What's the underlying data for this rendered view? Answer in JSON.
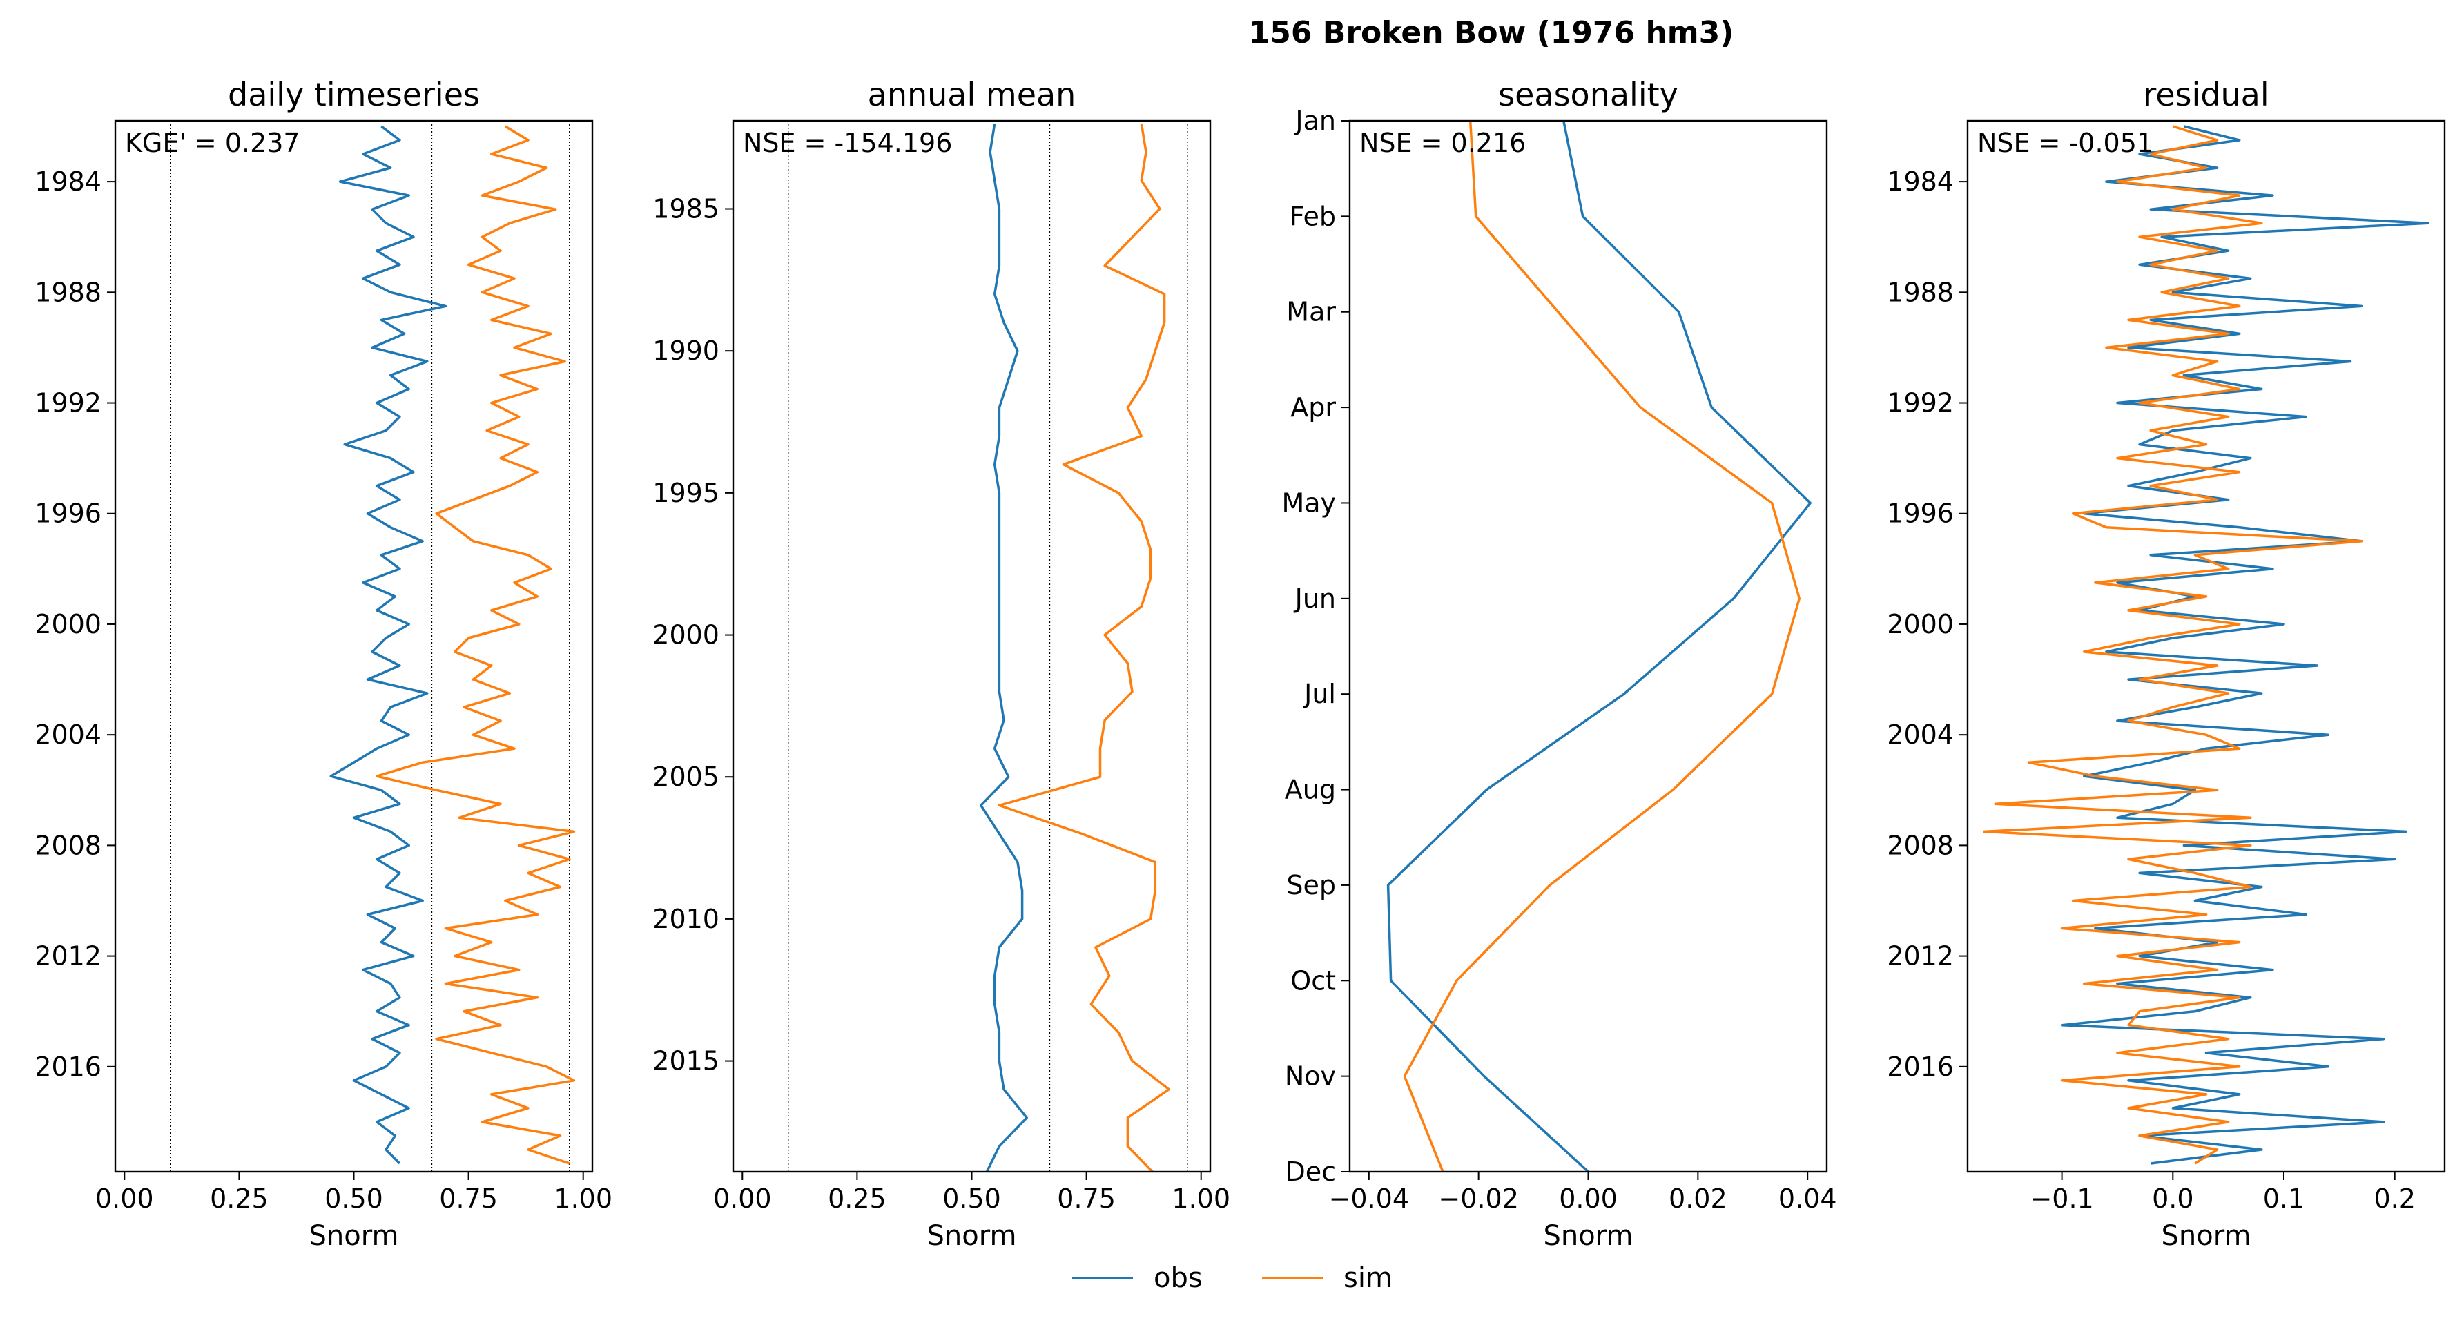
{
  "figure": {
    "suptitle": "156  Broken Bow (1976 hm3)",
    "colors": {
      "obs": "#1f77b4",
      "sim": "#ff7f0e"
    },
    "legend": {
      "position": "bottom-center",
      "entries": [
        "obs",
        "sim"
      ]
    }
  },
  "chart_data": [
    {
      "type": "line",
      "title": "daily timeseries",
      "xlabel": "Snorm",
      "ylabel": "",
      "metric": "KGE' = 0.237",
      "xlim": [
        -0.02,
        1.02
      ],
      "xticks": [
        0.0,
        0.25,
        0.5,
        0.75,
        1.0
      ],
      "xtick_labels": [
        "0.00",
        "0.25",
        "0.50",
        "0.75",
        "1.00"
      ],
      "ylim": [
        1981.8,
        2019.8
      ],
      "y_inverted": true,
      "yticks": [
        1984,
        1988,
        1992,
        1996,
        2000,
        2004,
        2008,
        2012,
        2016
      ],
      "ytick_labels": [
        "1984",
        "1988",
        "1992",
        "1996",
        "2000",
        "2004",
        "2008",
        "2012",
        "2016"
      ],
      "reference_lines_x": [
        0.1,
        0.67,
        0.97
      ],
      "series": [
        {
          "name": "obs",
          "y": [
            1982.0,
            1982.5,
            1983.0,
            1983.5,
            1984.0,
            1984.5,
            1985.0,
            1985.5,
            1986.0,
            1986.5,
            1987.0,
            1987.5,
            1988.0,
            1988.5,
            1989.0,
            1989.5,
            1990.0,
            1990.5,
            1991.0,
            1991.5,
            1992.0,
            1992.5,
            1993.0,
            1993.5,
            1994.0,
            1994.5,
            1995.0,
            1995.5,
            1996.0,
            1996.5,
            1997.0,
            1997.5,
            1998.0,
            1998.5,
            1999.0,
            1999.5,
            2000.0,
            2000.5,
            2001.0,
            2001.5,
            2002.0,
            2002.5,
            2003.0,
            2003.5,
            2004.0,
            2004.5,
            2005.0,
            2005.5,
            2006.0,
            2006.5,
            2007.0,
            2007.5,
            2008.0,
            2008.5,
            2009.0,
            2009.5,
            2010.0,
            2010.5,
            2011.0,
            2011.5,
            2012.0,
            2012.5,
            2013.0,
            2013.5,
            2014.0,
            2014.5,
            2015.0,
            2015.5,
            2016.0,
            2016.5,
            2017.0,
            2017.5,
            2018.0,
            2018.5,
            2019.0,
            2019.5
          ],
          "x": [
            0.56,
            0.6,
            0.52,
            0.58,
            0.47,
            0.62,
            0.54,
            0.57,
            0.63,
            0.55,
            0.6,
            0.52,
            0.58,
            0.7,
            0.56,
            0.61,
            0.54,
            0.66,
            0.58,
            0.62,
            0.55,
            0.6,
            0.57,
            0.48,
            0.58,
            0.63,
            0.55,
            0.6,
            0.53,
            0.58,
            0.65,
            0.56,
            0.6,
            0.52,
            0.59,
            0.55,
            0.62,
            0.57,
            0.54,
            0.6,
            0.53,
            0.66,
            0.58,
            0.56,
            0.62,
            0.55,
            0.5,
            0.45,
            0.56,
            0.6,
            0.5,
            0.58,
            0.62,
            0.55,
            0.6,
            0.57,
            0.65,
            0.53,
            0.59,
            0.56,
            0.63,
            0.52,
            0.58,
            0.6,
            0.55,
            0.62,
            0.54,
            0.6,
            0.57,
            0.5,
            0.56,
            0.62,
            0.55,
            0.59,
            0.57,
            0.6
          ]
        },
        {
          "name": "sim",
          "y": [
            1982.0,
            1982.5,
            1983.0,
            1983.5,
            1984.0,
            1984.5,
            1985.0,
            1985.5,
            1986.0,
            1986.5,
            1987.0,
            1987.5,
            1988.0,
            1988.5,
            1989.0,
            1989.5,
            1990.0,
            1990.5,
            1991.0,
            1991.5,
            1992.0,
            1992.5,
            1993.0,
            1993.5,
            1994.0,
            1994.5,
            1995.0,
            1995.5,
            1996.0,
            1996.5,
            1997.0,
            1997.5,
            1998.0,
            1998.5,
            1999.0,
            1999.5,
            2000.0,
            2000.5,
            2001.0,
            2001.5,
            2002.0,
            2002.5,
            2003.0,
            2003.5,
            2004.0,
            2004.5,
            2005.0,
            2005.5,
            2006.0,
            2006.5,
            2007.0,
            2007.5,
            2008.0,
            2008.5,
            2009.0,
            2009.5,
            2010.0,
            2010.5,
            2011.0,
            2011.5,
            2012.0,
            2012.5,
            2013.0,
            2013.5,
            2014.0,
            2014.5,
            2015.0,
            2015.5,
            2016.0,
            2016.5,
            2017.0,
            2017.5,
            2018.0,
            2018.5,
            2019.0,
            2019.5
          ],
          "x": [
            0.83,
            0.88,
            0.8,
            0.92,
            0.86,
            0.78,
            0.94,
            0.84,
            0.78,
            0.82,
            0.75,
            0.85,
            0.78,
            0.88,
            0.8,
            0.93,
            0.85,
            0.96,
            0.82,
            0.9,
            0.8,
            0.86,
            0.79,
            0.88,
            0.82,
            0.9,
            0.84,
            0.76,
            0.68,
            0.72,
            0.76,
            0.88,
            0.93,
            0.85,
            0.9,
            0.8,
            0.86,
            0.75,
            0.72,
            0.8,
            0.76,
            0.84,
            0.74,
            0.82,
            0.76,
            0.85,
            0.65,
            0.55,
            0.68,
            0.82,
            0.73,
            0.98,
            0.86,
            0.97,
            0.88,
            0.95,
            0.83,
            0.9,
            0.7,
            0.8,
            0.72,
            0.86,
            0.7,
            0.9,
            0.74,
            0.82,
            0.68,
            0.8,
            0.92,
            0.98,
            0.8,
            0.88,
            0.78,
            0.95,
            0.88,
            0.97
          ]
        }
      ]
    },
    {
      "type": "line",
      "title": "annual mean",
      "xlabel": "Snorm",
      "ylabel": "",
      "metric": "NSE = -154.196",
      "xlim": [
        -0.02,
        1.02
      ],
      "xticks": [
        0.0,
        0.25,
        0.5,
        0.75,
        1.0
      ],
      "xtick_labels": [
        "0.00",
        "0.25",
        "0.50",
        "0.75",
        "1.00"
      ],
      "ylim": [
        1981.9,
        2018.9
      ],
      "y_inverted": true,
      "yticks": [
        1985,
        1990,
        1995,
        2000,
        2005,
        2010,
        2015
      ],
      "ytick_labels": [
        "1985",
        "1990",
        "1995",
        "2000",
        "2005",
        "2010",
        "2015"
      ],
      "reference_lines_x": [
        0.1,
        0.67,
        0.97
      ],
      "series": [
        {
          "name": "obs",
          "y": [
            1982,
            1983,
            1984,
            1985,
            1986,
            1987,
            1988,
            1989,
            1990,
            1991,
            1992,
            1993,
            1994,
            1995,
            1996,
            1997,
            1998,
            1999,
            2000,
            2001,
            2002,
            2003,
            2004,
            2005,
            2006,
            2007,
            2008,
            2009,
            2010,
            2011,
            2012,
            2013,
            2014,
            2015,
            2016,
            2017,
            2018,
            2019
          ],
          "x": [
            0.55,
            0.54,
            0.55,
            0.56,
            0.56,
            0.56,
            0.55,
            0.57,
            0.6,
            0.58,
            0.56,
            0.56,
            0.55,
            0.56,
            0.56,
            0.56,
            0.56,
            0.56,
            0.56,
            0.56,
            0.56,
            0.57,
            0.55,
            0.58,
            0.52,
            0.56,
            0.6,
            0.61,
            0.61,
            0.56,
            0.55,
            0.55,
            0.56,
            0.56,
            0.57,
            0.62,
            0.56,
            0.53
          ]
        },
        {
          "name": "sim",
          "y": [
            1982,
            1983,
            1984,
            1985,
            1986,
            1987,
            1988,
            1989,
            1990,
            1991,
            1992,
            1993,
            1994,
            1995,
            1996,
            1997,
            1998,
            1999,
            2000,
            2001,
            2002,
            2003,
            2004,
            2005,
            2006,
            2007,
            2008,
            2009,
            2010,
            2011,
            2012,
            2013,
            2014,
            2015,
            2016,
            2017,
            2018,
            2019
          ],
          "x": [
            0.87,
            0.88,
            0.87,
            0.91,
            0.85,
            0.79,
            0.92,
            0.92,
            0.9,
            0.88,
            0.84,
            0.87,
            0.7,
            0.82,
            0.87,
            0.89,
            0.89,
            0.87,
            0.79,
            0.84,
            0.85,
            0.79,
            0.78,
            0.78,
            0.56,
            0.74,
            0.9,
            0.9,
            0.89,
            0.77,
            0.8,
            0.76,
            0.82,
            0.85,
            0.93,
            0.84,
            0.84,
            0.9
          ]
        }
      ]
    },
    {
      "type": "line",
      "title": "seasonality",
      "xlabel": "Snorm",
      "ylabel": "",
      "metric": "NSE = 0.216",
      "xlim": [
        -0.0435,
        0.0435
      ],
      "xticks": [
        -0.04,
        -0.02,
        0.0,
        0.02,
        0.04
      ],
      "xtick_labels": [
        "−0.04",
        "−0.02",
        "0.00",
        "0.02",
        "0.04"
      ],
      "ylim": [
        0,
        11
      ],
      "y_inverted": true,
      "yticks": [
        0,
        1,
        2,
        3,
        4,
        5,
        6,
        7,
        8,
        9,
        10,
        11
      ],
      "ytick_labels": [
        "Jan",
        "Feb",
        "Mar",
        "Apr",
        "May",
        "Jun",
        "Jul",
        "Aug",
        "Sep",
        "Oct",
        "Nov",
        "Dec"
      ],
      "reference_lines_x": [],
      "series": [
        {
          "name": "obs",
          "y": [
            0,
            1,
            2,
            3,
            4,
            5,
            6,
            7,
            8,
            9,
            10,
            11
          ],
          "x": [
            -0.0045,
            -0.001,
            0.0165,
            0.0225,
            0.0405,
            0.0265,
            0.0065,
            -0.0185,
            -0.0365,
            -0.036,
            -0.019,
            0.0
          ]
        },
        {
          "name": "sim",
          "y": [
            0,
            1,
            2,
            3,
            4,
            5,
            6,
            7,
            8,
            9,
            10,
            11
          ],
          "x": [
            -0.0215,
            -0.0205,
            -0.0055,
            0.0095,
            0.0335,
            0.0385,
            0.0335,
            0.0155,
            -0.007,
            -0.024,
            -0.0335,
            -0.0265
          ]
        }
      ]
    },
    {
      "type": "line",
      "title": "residual",
      "xlabel": "Snorm",
      "ylabel": "",
      "metric": "NSE = -0.051",
      "xlim": [
        -0.185,
        0.245
      ],
      "xticks": [
        -0.1,
        0.0,
        0.1,
        0.2
      ],
      "xtick_labels": [
        "−0.1",
        "0.0",
        "0.1",
        "0.2"
      ],
      "ylim": [
        1981.8,
        2019.8
      ],
      "y_inverted": true,
      "yticks": [
        1984,
        1988,
        1992,
        1996,
        2000,
        2004,
        2008,
        2012,
        2016
      ],
      "ytick_labels": [
        "1984",
        "1988",
        "1992",
        "1996",
        "2000",
        "2004",
        "2008",
        "2012",
        "2016"
      ],
      "reference_lines_x": [],
      "series": [
        {
          "name": "obs",
          "y": [
            1982.0,
            1982.5,
            1983.0,
            1983.5,
            1984.0,
            1984.5,
            1985.0,
            1985.5,
            1986.0,
            1986.5,
            1987.0,
            1987.5,
            1988.0,
            1988.5,
            1989.0,
            1989.5,
            1990.0,
            1990.5,
            1991.0,
            1991.5,
            1992.0,
            1992.5,
            1993.0,
            1993.5,
            1994.0,
            1994.5,
            1995.0,
            1995.5,
            1996.0,
            1996.5,
            1997.0,
            1997.5,
            1998.0,
            1998.5,
            1999.0,
            1999.5,
            2000.0,
            2000.5,
            2001.0,
            2001.5,
            2002.0,
            2002.5,
            2003.0,
            2003.5,
            2004.0,
            2004.5,
            2005.0,
            2005.5,
            2006.0,
            2006.5,
            2007.0,
            2007.5,
            2008.0,
            2008.5,
            2009.0,
            2009.5,
            2010.0,
            2010.5,
            2011.0,
            2011.5,
            2012.0,
            2012.5,
            2013.0,
            2013.5,
            2014.0,
            2014.5,
            2015.0,
            2015.5,
            2016.0,
            2016.5,
            2017.0,
            2017.5,
            2018.0,
            2018.5,
            2019.0,
            2019.5
          ],
          "x": [
            0.01,
            0.06,
            -0.03,
            0.04,
            -0.06,
            0.09,
            -0.02,
            0.23,
            -0.01,
            0.05,
            -0.03,
            0.07,
            0.0,
            0.17,
            -0.02,
            0.06,
            -0.04,
            0.16,
            0.01,
            0.08,
            -0.05,
            0.12,
            0.0,
            -0.03,
            0.07,
            0.02,
            -0.04,
            0.05,
            -0.08,
            0.06,
            0.17,
            -0.02,
            0.09,
            -0.05,
            0.02,
            -0.03,
            0.1,
            0.0,
            -0.06,
            0.13,
            -0.04,
            0.08,
            0.02,
            -0.05,
            0.14,
            0.03,
            -0.02,
            -0.08,
            0.02,
            0.0,
            -0.05,
            0.21,
            0.01,
            0.2,
            -0.03,
            0.08,
            0.02,
            0.12,
            -0.07,
            0.04,
            -0.03,
            0.09,
            -0.05,
            0.07,
            0.02,
            -0.1,
            0.19,
            0.03,
            0.14,
            -0.04,
            0.06,
            0.0,
            0.19,
            -0.03,
            0.08,
            -0.02
          ]
        },
        {
          "name": "sim",
          "y": [
            1982.0,
            1982.5,
            1983.0,
            1983.5,
            1984.0,
            1984.5,
            1985.0,
            1985.5,
            1986.0,
            1986.5,
            1987.0,
            1987.5,
            1988.0,
            1988.5,
            1989.0,
            1989.5,
            1990.0,
            1990.5,
            1991.0,
            1991.5,
            1992.0,
            1992.5,
            1993.0,
            1993.5,
            1994.0,
            1994.5,
            1995.0,
            1995.5,
            1996.0,
            1996.5,
            1997.0,
            1997.5,
            1998.0,
            1998.5,
            1999.0,
            1999.5,
            2000.0,
            2000.5,
            2001.0,
            2001.5,
            2002.0,
            2002.5,
            2003.0,
            2003.5,
            2004.0,
            2004.5,
            2005.0,
            2005.5,
            2006.0,
            2006.5,
            2007.0,
            2007.5,
            2008.0,
            2008.5,
            2009.0,
            2009.5,
            2010.0,
            2010.5,
            2011.0,
            2011.5,
            2012.0,
            2012.5,
            2013.0,
            2013.5,
            2014.0,
            2014.5,
            2015.0,
            2015.5,
            2016.0,
            2016.5,
            2017.0,
            2017.5,
            2018.0,
            2018.5,
            2019.0,
            2019.5
          ],
          "x": [
            0.0,
            0.04,
            -0.02,
            0.03,
            -0.05,
            0.06,
            0.0,
            0.08,
            -0.03,
            0.04,
            -0.02,
            0.05,
            -0.01,
            0.06,
            -0.04,
            0.05,
            -0.06,
            0.04,
            0.0,
            0.06,
            -0.03,
            0.05,
            -0.02,
            0.03,
            -0.05,
            0.06,
            -0.02,
            0.04,
            -0.09,
            -0.06,
            0.17,
            0.02,
            0.05,
            -0.07,
            0.03,
            -0.04,
            0.06,
            -0.02,
            -0.08,
            0.04,
            -0.03,
            0.05,
            0.0,
            -0.04,
            0.03,
            0.06,
            -0.13,
            -0.07,
            0.04,
            -0.16,
            0.07,
            -0.17,
            0.07,
            -0.04,
            0.02,
            0.07,
            -0.09,
            0.03,
            -0.1,
            0.06,
            -0.05,
            0.04,
            -0.08,
            0.06,
            -0.03,
            -0.04,
            0.05,
            -0.05,
            0.06,
            -0.1,
            0.03,
            -0.04,
            0.05,
            -0.03,
            0.04,
            0.02
          ]
        }
      ]
    }
  ]
}
